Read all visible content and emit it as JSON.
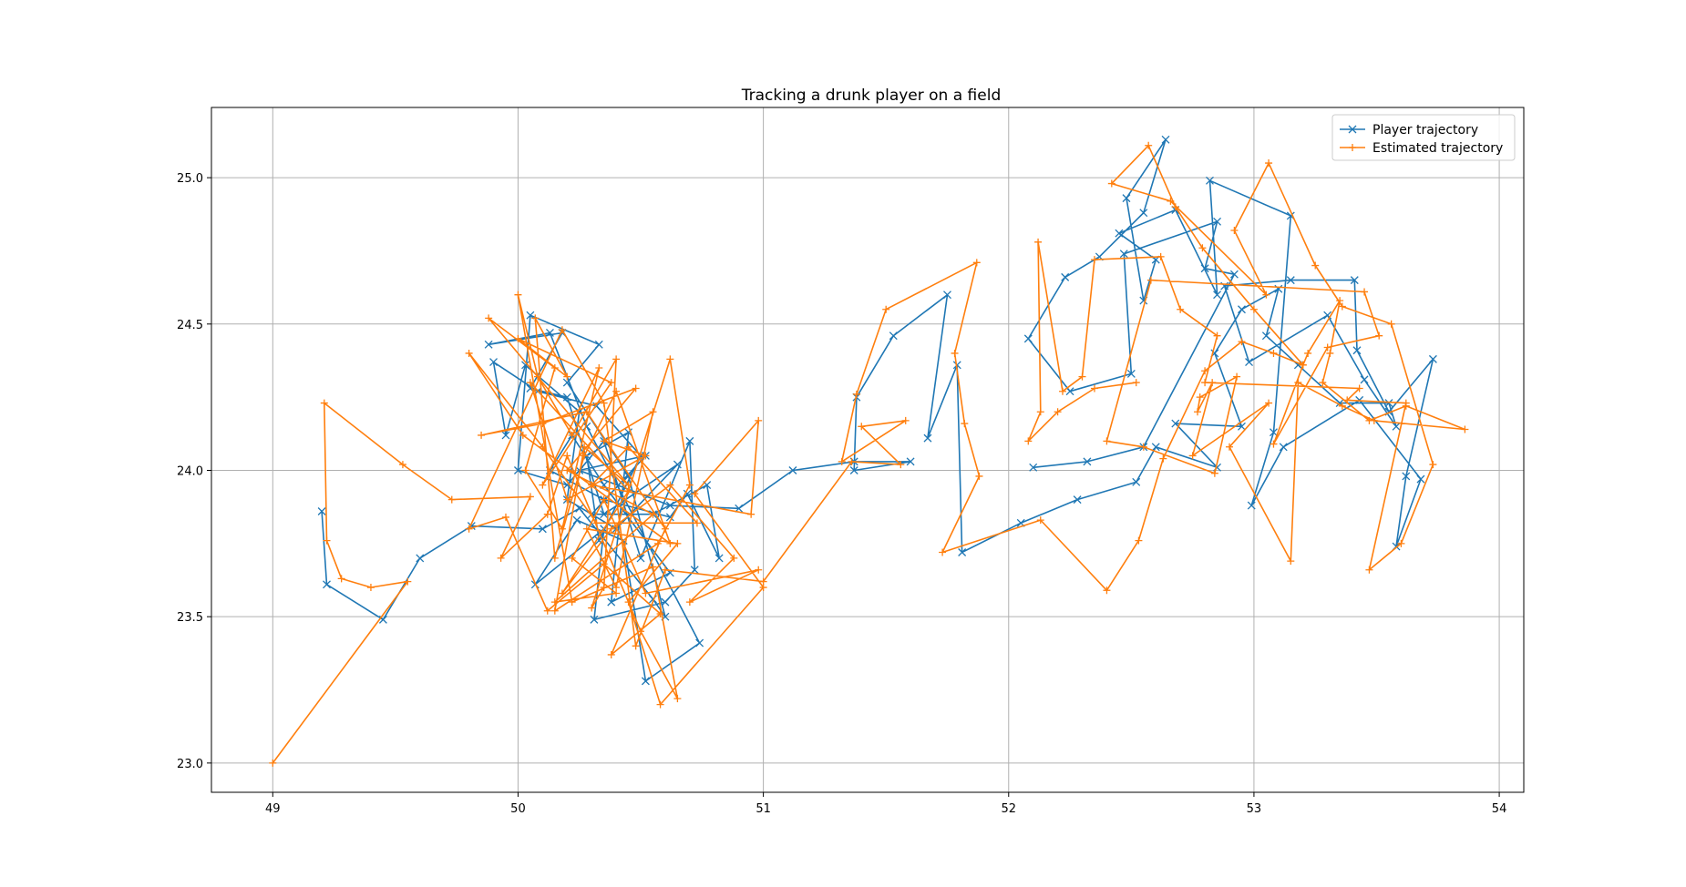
{
  "chart_data": {
    "type": "line",
    "title": "Tracking a drunk player on a field",
    "xlabel": "",
    "ylabel": "",
    "xlim": [
      48.75,
      54.1
    ],
    "ylim": [
      22.9,
      25.24
    ],
    "xticks": [
      49,
      50,
      51,
      52,
      53,
      54
    ],
    "yticks": [
      23.0,
      23.5,
      24.0,
      24.5,
      25.0
    ],
    "xtick_labels": [
      "49",
      "50",
      "51",
      "52",
      "53",
      "54"
    ],
    "ytick_labels": [
      "23.0",
      "23.5",
      "24.0",
      "24.5",
      "25.0"
    ],
    "grid": true,
    "legend_position": "top-right",
    "series": [
      {
        "name": "Player trajectory",
        "color": "#1f77b4",
        "marker": "x",
        "points": [
          [
            49.2,
            23.86
          ],
          [
            49.22,
            23.61
          ],
          [
            49.45,
            23.49
          ],
          [
            49.6,
            23.7
          ],
          [
            49.81,
            23.81
          ],
          [
            50.1,
            23.8
          ],
          [
            50.25,
            23.87
          ],
          [
            50.55,
            23.56
          ],
          [
            50.6,
            23.5
          ],
          [
            50.45,
            23.98
          ],
          [
            50.2,
            24.3
          ],
          [
            50.33,
            24.43
          ],
          [
            50.05,
            24.53
          ],
          [
            50.0,
            24.0
          ],
          [
            50.2,
            23.95
          ],
          [
            50.35,
            24.1
          ],
          [
            50.5,
            23.7
          ],
          [
            50.7,
            24.1
          ],
          [
            50.72,
            23.66
          ],
          [
            50.6,
            23.55
          ],
          [
            50.31,
            23.49
          ],
          [
            50.35,
            23.8
          ],
          [
            50.07,
            23.61
          ],
          [
            50.24,
            23.83
          ],
          [
            50.43,
            23.76
          ],
          [
            50.52,
            23.28
          ],
          [
            50.74,
            23.41
          ],
          [
            50.28,
            24.15
          ],
          [
            50.13,
            24.47
          ],
          [
            49.88,
            24.43
          ],
          [
            50.18,
            24.47
          ],
          [
            50.05,
            24.28
          ],
          [
            50.2,
            24.25
          ],
          [
            50.35,
            23.85
          ],
          [
            50.65,
            24.02
          ],
          [
            50.4,
            23.8
          ],
          [
            50.2,
            23.9
          ],
          [
            50.25,
            24.2
          ],
          [
            50.03,
            24.36
          ],
          [
            49.95,
            24.12
          ],
          [
            49.9,
            24.37
          ],
          [
            50.08,
            24.27
          ],
          [
            50.32,
            24.22
          ],
          [
            50.5,
            24.05
          ],
          [
            50.33,
            23.76
          ],
          [
            50.28,
            24.05
          ],
          [
            50.45,
            24.13
          ],
          [
            50.38,
            23.55
          ],
          [
            50.62,
            23.65
          ],
          [
            50.35,
            23.95
          ],
          [
            50.22,
            24.12
          ],
          [
            50.13,
            24.0
          ],
          [
            50.35,
            23.9
          ],
          [
            50.62,
            23.84
          ],
          [
            50.69,
            23.92
          ],
          [
            50.82,
            23.7
          ],
          [
            50.77,
            23.95
          ],
          [
            50.55,
            23.85
          ],
          [
            50.3,
            23.85
          ],
          [
            50.52,
            24.05
          ],
          [
            50.25,
            24.0
          ],
          [
            50.62,
            23.88
          ],
          [
            50.9,
            23.87
          ],
          [
            51.12,
            24.0
          ],
          [
            51.37,
            24.03
          ],
          [
            51.6,
            24.03
          ],
          [
            51.37,
            24.0
          ],
          [
            51.38,
            24.25
          ],
          [
            51.53,
            24.46
          ],
          [
            51.75,
            24.6
          ],
          [
            51.67,
            24.11
          ],
          [
            51.79,
            24.36
          ],
          [
            51.81,
            23.72
          ],
          [
            52.05,
            23.82
          ],
          [
            52.28,
            23.9
          ],
          [
            52.52,
            23.96
          ],
          [
            52.6,
            24.08
          ],
          [
            52.85,
            24.01
          ],
          [
            52.68,
            24.16
          ],
          [
            52.95,
            24.15
          ],
          [
            52.84,
            24.4
          ],
          [
            52.95,
            24.55
          ],
          [
            53.1,
            24.62
          ],
          [
            53.05,
            24.46
          ],
          [
            53.18,
            24.36
          ],
          [
            53.35,
            24.23
          ],
          [
            53.55,
            24.23
          ],
          [
            53.58,
            24.15
          ],
          [
            53.45,
            24.31
          ],
          [
            53.3,
            24.53
          ],
          [
            52.98,
            24.37
          ],
          [
            52.88,
            24.63
          ],
          [
            53.15,
            24.65
          ],
          [
            53.41,
            24.65
          ],
          [
            53.42,
            24.41
          ],
          [
            53.55,
            24.2
          ],
          [
            53.73,
            24.38
          ],
          [
            53.62,
            23.98
          ],
          [
            53.58,
            23.74
          ],
          [
            53.68,
            23.97
          ],
          [
            53.43,
            24.24
          ],
          [
            53.12,
            24.08
          ],
          [
            52.99,
            23.88
          ],
          [
            53.08,
            24.13
          ],
          [
            53.15,
            24.87
          ],
          [
            52.82,
            24.99
          ],
          [
            52.85,
            24.6
          ],
          [
            52.68,
            24.89
          ],
          [
            52.45,
            24.81
          ],
          [
            52.6,
            24.72
          ],
          [
            52.55,
            24.58
          ],
          [
            52.48,
            24.93
          ],
          [
            52.64,
            25.13
          ],
          [
            52.55,
            24.88
          ],
          [
            52.37,
            24.73
          ],
          [
            52.23,
            24.66
          ],
          [
            52.08,
            24.45
          ],
          [
            52.25,
            24.27
          ],
          [
            52.5,
            24.33
          ],
          [
            52.47,
            24.74
          ],
          [
            52.85,
            24.85
          ],
          [
            52.8,
            24.69
          ],
          [
            52.92,
            24.67
          ],
          [
            52.55,
            24.08
          ],
          [
            52.32,
            24.03
          ],
          [
            52.1,
            24.01
          ]
        ]
      },
      {
        "name": "Estimated trajectory",
        "color": "#ff7f0e",
        "marker": "+",
        "points": [
          [
            49.0,
            23.0
          ],
          [
            49.55,
            23.62
          ],
          [
            49.4,
            23.6
          ],
          [
            49.28,
            23.63
          ],
          [
            49.22,
            23.76
          ],
          [
            49.21,
            24.23
          ],
          [
            49.53,
            24.02
          ],
          [
            49.73,
            23.9
          ],
          [
            50.05,
            23.91
          ],
          [
            49.93,
            23.7
          ],
          [
            50.12,
            23.85
          ],
          [
            50.2,
            24.05
          ],
          [
            50.5,
            23.45
          ],
          [
            50.65,
            23.22
          ],
          [
            50.55,
            23.67
          ],
          [
            50.22,
            23.55
          ],
          [
            50.0,
            24.6
          ],
          [
            50.08,
            24.32
          ],
          [
            50.22,
            24.12
          ],
          [
            50.4,
            24.38
          ],
          [
            50.35,
            23.6
          ],
          [
            50.3,
            23.53
          ],
          [
            50.62,
            24.38
          ],
          [
            50.7,
            23.95
          ],
          [
            50.57,
            23.75
          ],
          [
            50.15,
            23.52
          ],
          [
            50.27,
            24.08
          ],
          [
            50.45,
            23.95
          ],
          [
            49.88,
            24.52
          ],
          [
            50.15,
            24.35
          ],
          [
            50.03,
            24.0
          ],
          [
            50.18,
            23.8
          ],
          [
            50.33,
            24.35
          ],
          [
            50.1,
            23.95
          ],
          [
            50.38,
            24.3
          ],
          [
            50.0,
            24.45
          ],
          [
            50.2,
            24.32
          ],
          [
            50.07,
            24.52
          ],
          [
            50.15,
            23.7
          ],
          [
            50.27,
            24.05
          ],
          [
            50.4,
            24.27
          ],
          [
            50.62,
            23.75
          ],
          [
            50.02,
            24.12
          ],
          [
            49.8,
            24.4
          ],
          [
            50.1,
            24.08
          ],
          [
            50.32,
            23.82
          ],
          [
            50.73,
            23.82
          ],
          [
            50.45,
            24.08
          ],
          [
            50.3,
            23.95
          ],
          [
            50.95,
            23.85
          ],
          [
            50.98,
            24.17
          ],
          [
            50.72,
            23.92
          ],
          [
            51.0,
            23.6
          ],
          [
            50.58,
            23.2
          ],
          [
            50.45,
            23.55
          ],
          [
            50.65,
            23.75
          ],
          [
            50.28,
            23.8
          ],
          [
            50.4,
            23.6
          ],
          [
            50.55,
            24.2
          ],
          [
            50.35,
            24.1
          ],
          [
            50.52,
            24.05
          ],
          [
            50.2,
            23.9
          ],
          [
            50.05,
            24.3
          ],
          [
            50.45,
            23.93
          ],
          [
            50.18,
            23.58
          ],
          [
            50.38,
            23.8
          ],
          [
            50.62,
            23.95
          ],
          [
            50.88,
            23.7
          ],
          [
            50.7,
            23.55
          ],
          [
            50.98,
            23.66
          ],
          [
            50.52,
            23.58
          ],
          [
            50.35,
            23.9
          ],
          [
            50.22,
            23.7
          ],
          [
            50.4,
            23.58
          ],
          [
            50.15,
            23.55
          ],
          [
            50.55,
            23.85
          ],
          [
            50.2,
            24.0
          ],
          [
            50.48,
            24.28
          ],
          [
            50.1,
            24.16
          ],
          [
            49.85,
            24.12
          ],
          [
            50.28,
            24.2
          ],
          [
            50.6,
            23.8
          ],
          [
            50.38,
            23.37
          ],
          [
            50.58,
            23.51
          ],
          [
            50.35,
            23.68
          ],
          [
            50.12,
            23.52
          ],
          [
            49.95,
            23.84
          ],
          [
            49.8,
            23.8
          ],
          [
            50.18,
            24.48
          ],
          [
            50.35,
            24.23
          ],
          [
            50.48,
            23.4
          ],
          [
            50.6,
            23.66
          ],
          [
            51.0,
            23.62
          ],
          [
            51.36,
            24.03
          ],
          [
            51.56,
            24.02
          ],
          [
            51.4,
            24.15
          ],
          [
            51.58,
            24.17
          ],
          [
            51.32,
            24.03
          ],
          [
            51.38,
            24.26
          ],
          [
            51.5,
            24.55
          ],
          [
            51.87,
            24.71
          ],
          [
            51.78,
            24.4
          ],
          [
            51.82,
            24.16
          ],
          [
            51.88,
            23.98
          ],
          [
            51.73,
            23.72
          ],
          [
            52.13,
            23.83
          ],
          [
            52.4,
            23.59
          ],
          [
            52.53,
            23.76
          ],
          [
            52.63,
            24.04
          ],
          [
            52.8,
            24.34
          ],
          [
            52.95,
            24.44
          ],
          [
            53.08,
            24.4
          ],
          [
            53.2,
            24.36
          ],
          [
            53.22,
            24.4
          ],
          [
            53.35,
            24.58
          ],
          [
            53.31,
            24.4
          ],
          [
            53.28,
            24.3
          ],
          [
            53.47,
            24.17
          ],
          [
            53.62,
            24.22
          ],
          [
            53.86,
            24.14
          ],
          [
            53.49,
            24.17
          ],
          [
            53.36,
            24.22
          ],
          [
            53.18,
            24.3
          ],
          [
            53.15,
            23.69
          ],
          [
            52.9,
            24.08
          ],
          [
            53.06,
            24.23
          ],
          [
            52.75,
            24.05
          ],
          [
            52.83,
            24.3
          ],
          [
            52.77,
            24.2
          ],
          [
            52.78,
            24.25
          ],
          [
            52.93,
            24.32
          ],
          [
            52.84,
            23.99
          ],
          [
            52.55,
            24.08
          ],
          [
            52.4,
            24.1
          ],
          [
            52.58,
            24.65
          ],
          [
            53.45,
            24.61
          ],
          [
            53.51,
            24.46
          ],
          [
            53.3,
            24.42
          ],
          [
            53.08,
            24.09
          ],
          [
            53.2,
            24.36
          ],
          [
            53.0,
            24.55
          ],
          [
            52.79,
            24.76
          ],
          [
            52.68,
            24.9
          ],
          [
            52.57,
            25.11
          ],
          [
            52.42,
            24.98
          ],
          [
            52.66,
            24.92
          ],
          [
            53.05,
            24.6
          ],
          [
            52.92,
            24.82
          ],
          [
            53.06,
            25.05
          ],
          [
            53.25,
            24.7
          ],
          [
            53.36,
            24.56
          ],
          [
            53.56,
            24.5
          ],
          [
            53.73,
            24.02
          ],
          [
            53.6,
            23.75
          ],
          [
            53.47,
            23.66
          ],
          [
            53.62,
            24.23
          ],
          [
            53.38,
            24.24
          ],
          [
            53.43,
            24.28
          ],
          [
            52.8,
            24.3
          ],
          [
            52.85,
            24.46
          ],
          [
            52.7,
            24.55
          ],
          [
            52.62,
            24.73
          ],
          [
            52.35,
            24.72
          ],
          [
            52.3,
            24.32
          ],
          [
            52.22,
            24.27
          ],
          [
            52.12,
            24.78
          ],
          [
            52.13,
            24.2
          ],
          [
            52.08,
            24.1
          ],
          [
            52.2,
            24.2
          ],
          [
            52.35,
            24.28
          ],
          [
            52.52,
            24.3
          ]
        ]
      }
    ]
  }
}
